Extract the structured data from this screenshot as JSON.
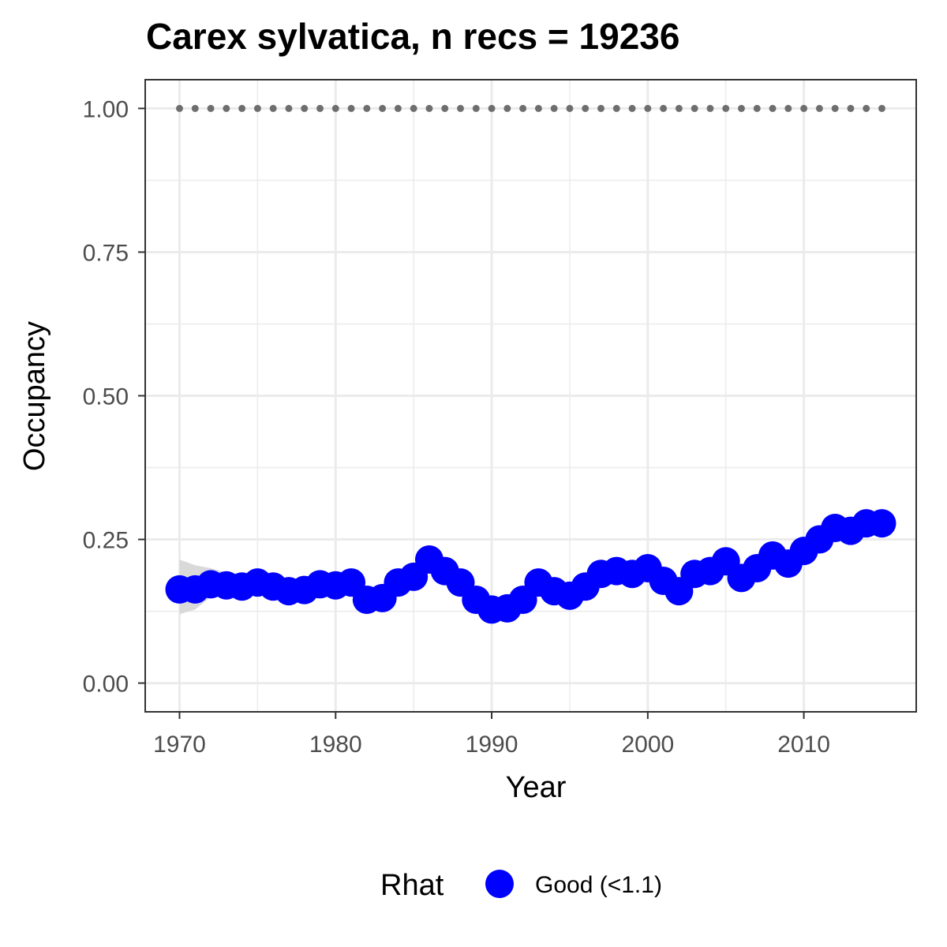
{
  "chart_data": {
    "type": "line",
    "title": "Carex sylvatica, n recs = 19236",
    "xlabel": "Year",
    "ylabel": "Occupancy",
    "xlim": [
      1967.8,
      2017.2
    ],
    "ylim": [
      -0.05,
      1.05
    ],
    "x_ticks": [
      1970,
      1980,
      1990,
      2000,
      2010
    ],
    "x_tick_labels": [
      "1970",
      "1980",
      "1990",
      "2000",
      "2010"
    ],
    "y_ticks": [
      0,
      0.25,
      0.5,
      0.75,
      1
    ],
    "y_tick_labels": [
      "0.00",
      "0.25",
      "0.50",
      "0.75",
      "1.00"
    ],
    "grid": true,
    "legend": {
      "title": "Rhat",
      "position": "bottom",
      "entries": [
        {
          "label": "Good (<1.1)",
          "color": "#0000ff"
        }
      ]
    },
    "colors": {
      "series": "#0000ff",
      "ribbon": "#d9d9d9",
      "reference": "#6e6e6e",
      "grid": "#ebebeb",
      "border": "#333333"
    },
    "x": [
      1970,
      1971,
      1972,
      1973,
      1974,
      1975,
      1976,
      1977,
      1978,
      1979,
      1980,
      1981,
      1982,
      1983,
      1984,
      1985,
      1986,
      1987,
      1988,
      1989,
      1990,
      1991,
      1992,
      1993,
      1994,
      1995,
      1996,
      1997,
      1998,
      1999,
      2000,
      2001,
      2002,
      2003,
      2004,
      2005,
      2006,
      2007,
      2008,
      2009,
      2010,
      2011,
      2012,
      2013,
      2014,
      2015
    ],
    "series": [
      {
        "name": "Good (<1.1)",
        "values": [
          0.163,
          0.163,
          0.172,
          0.17,
          0.168,
          0.175,
          0.168,
          0.16,
          0.162,
          0.172,
          0.17,
          0.175,
          0.145,
          0.148,
          0.175,
          0.185,
          0.215,
          0.195,
          0.175,
          0.145,
          0.128,
          0.13,
          0.145,
          0.175,
          0.16,
          0.152,
          0.168,
          0.19,
          0.195,
          0.19,
          0.2,
          0.178,
          0.16,
          0.19,
          0.195,
          0.212,
          0.183,
          0.2,
          0.222,
          0.208,
          0.23,
          0.25,
          0.27,
          0.265,
          0.278,
          0.278
        ],
        "lower": [
          0.12,
          0.128,
          0.15,
          0.155,
          0.152,
          0.16,
          0.152,
          0.145,
          0.148,
          0.158,
          0.16,
          0.162,
          0.135,
          0.138,
          0.165,
          0.175,
          0.205,
          0.185,
          0.165,
          0.135,
          0.118,
          0.12,
          0.135,
          0.165,
          0.15,
          0.142,
          0.158,
          0.18,
          0.185,
          0.18,
          0.19,
          0.168,
          0.15,
          0.18,
          0.185,
          0.202,
          0.173,
          0.19,
          0.212,
          0.198,
          0.22,
          0.24,
          0.26,
          0.255,
          0.268,
          0.268
        ],
        "upper": [
          0.215,
          0.205,
          0.2,
          0.192,
          0.19,
          0.195,
          0.19,
          0.18,
          0.182,
          0.192,
          0.185,
          0.19,
          0.16,
          0.162,
          0.185,
          0.195,
          0.225,
          0.205,
          0.185,
          0.155,
          0.138,
          0.14,
          0.155,
          0.185,
          0.17,
          0.162,
          0.178,
          0.2,
          0.205,
          0.2,
          0.21,
          0.188,
          0.17,
          0.2,
          0.205,
          0.222,
          0.193,
          0.21,
          0.232,
          0.218,
          0.24,
          0.26,
          0.28,
          0.275,
          0.288,
          0.288
        ]
      }
    ],
    "reference_line": {
      "y": 1.0,
      "style": "dotted"
    }
  }
}
